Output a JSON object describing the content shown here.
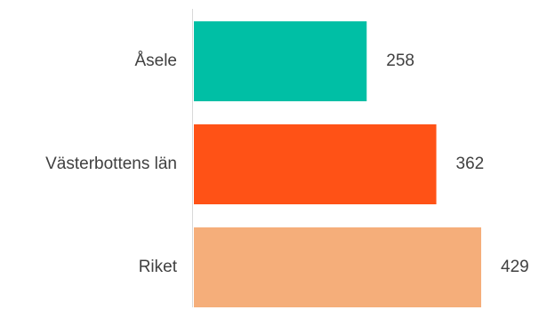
{
  "chart_data": {
    "type": "bar",
    "orientation": "horizontal",
    "categories": [
      "Åsele",
      "Västerbottens län",
      "Riket"
    ],
    "values": [
      258,
      362,
      429
    ],
    "data_labels": [
      "258",
      "362",
      "429"
    ],
    "colors": [
      "#00BFA5",
      "#FF5216",
      "#F5AE7A"
    ],
    "xlim": [
      0,
      429
    ],
    "grid": false,
    "legend": "none",
    "axis_line_color": "#D9D9D9",
    "label_color": "#404040"
  }
}
